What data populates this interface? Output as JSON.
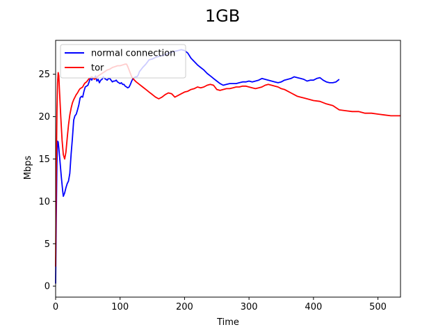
{
  "chart_data": {
    "type": "line",
    "title": "1GB",
    "xlabel": "Time",
    "ylabel": "Mbps",
    "xlim": [
      0,
      535
    ],
    "ylim": [
      -1.3,
      29
    ],
    "x_ticks": [
      0,
      100,
      200,
      300,
      400,
      500
    ],
    "y_ticks": [
      0,
      5,
      10,
      15,
      20,
      25
    ],
    "grid": false,
    "legend_position": "upper-left",
    "series": [
      {
        "name": "normal connection",
        "color": "#0000ff",
        "x": [
          0,
          1,
          2,
          3,
          4,
          5,
          7,
          9,
          11,
          12,
          14,
          16,
          18,
          20,
          22,
          24,
          26,
          28,
          30,
          32,
          34,
          36,
          38,
          40,
          42,
          44,
          46,
          48,
          50,
          52,
          54,
          56,
          58,
          60,
          62,
          64,
          66,
          68,
          70,
          72,
          74,
          76,
          78,
          80,
          82,
          84,
          86,
          88,
          90,
          92,
          94,
          96,
          98,
          100,
          102,
          104,
          106,
          108,
          110,
          112,
          114,
          116,
          118,
          120,
          122,
          124,
          126,
          128,
          130,
          135,
          140,
          145,
          150,
          155,
          160,
          165,
          170,
          175,
          180,
          185,
          190,
          195,
          200,
          205,
          210,
          215,
          220,
          225,
          230,
          235,
          240,
          245,
          250,
          255,
          260,
          265,
          270,
          275,
          280,
          285,
          290,
          295,
          300,
          305,
          310,
          315,
          320,
          325,
          330,
          335,
          340,
          345,
          350,
          355,
          360,
          365,
          370,
          375,
          380,
          385,
          390,
          395,
          400,
          405,
          410,
          415,
          420,
          425,
          430,
          435,
          440
        ],
        "values": [
          0.3,
          8,
          14.5,
          17.1,
          17.0,
          16.3,
          14.5,
          12.8,
          11.2,
          10.6,
          11.0,
          11.6,
          12.1,
          12.4,
          13.3,
          15.6,
          17.4,
          19.6,
          20.1,
          20.3,
          20.8,
          21.4,
          22.2,
          22.4,
          22.3,
          23.0,
          23.5,
          23.6,
          23.7,
          24.1,
          24.6,
          24.3,
          24.6,
          24.5,
          24.8,
          24.2,
          24.4,
          24.0,
          24.3,
          24.4,
          24.7,
          24.5,
          24.4,
          24.3,
          24.5,
          24.5,
          24.3,
          24.1,
          24.2,
          24.2,
          24.3,
          24.1,
          24.0,
          23.9,
          24.0,
          23.8,
          23.8,
          23.6,
          23.5,
          23.4,
          23.5,
          23.8,
          24.2,
          24.5,
          24.6,
          24.7,
          24.7,
          24.9,
          25.3,
          25.8,
          26.2,
          26.7,
          26.8,
          27.0,
          27.1,
          27.2,
          27.3,
          27.5,
          27.6,
          27.7,
          27.8,
          27.9,
          27.8,
          27.5,
          26.9,
          26.5,
          26.1,
          25.8,
          25.5,
          25.1,
          24.8,
          24.5,
          24.2,
          23.9,
          23.7,
          23.8,
          23.9,
          23.9,
          23.9,
          24.0,
          24.1,
          24.1,
          24.2,
          24.1,
          24.2,
          24.3,
          24.5,
          24.4,
          24.3,
          24.2,
          24.1,
          24.0,
          24.1,
          24.3,
          24.4,
          24.5,
          24.7,
          24.6,
          24.5,
          24.4,
          24.2,
          24.3,
          24.3,
          24.5,
          24.6,
          24.3,
          24.1,
          24.0,
          24.0,
          24.1,
          24.4
        ]
      },
      {
        "name": "tor",
        "color": "#ff0000",
        "x": [
          0,
          1,
          2,
          3,
          4,
          5,
          6,
          8,
          10,
          12,
          14,
          16,
          18,
          20,
          22,
          24,
          26,
          28,
          30,
          32,
          34,
          36,
          38,
          40,
          42,
          44,
          46,
          48,
          50,
          52,
          54,
          56,
          58,
          60,
          62,
          64,
          66,
          68,
          70,
          72,
          74,
          76,
          78,
          80,
          84,
          88,
          92,
          96,
          100,
          104,
          108,
          110,
          112,
          115,
          118,
          121,
          125,
          130,
          135,
          140,
          145,
          150,
          155,
          160,
          165,
          170,
          175,
          180,
          185,
          190,
          195,
          200,
          205,
          210,
          215,
          220,
          225,
          230,
          235,
          240,
          245,
          250,
          255,
          260,
          265,
          270,
          275,
          280,
          285,
          290,
          295,
          300,
          305,
          310,
          315,
          320,
          325,
          330,
          335,
          340,
          345,
          350,
          355,
          360,
          365,
          370,
          375,
          380,
          385,
          390,
          395,
          400,
          410,
          420,
          430,
          440,
          450,
          460,
          470,
          480,
          490,
          500,
          510,
          520,
          535
        ],
        "values": [
          2.3,
          13.5,
          20.5,
          24.0,
          25.2,
          24.8,
          23.0,
          20.0,
          17.2,
          15.5,
          15.0,
          15.8,
          17.5,
          19.0,
          20.2,
          21.0,
          21.6,
          22.0,
          22.3,
          22.6,
          22.8,
          23.1,
          23.3,
          23.4,
          23.5,
          23.8,
          24.0,
          24.1,
          24.3,
          24.5,
          24.6,
          24.7,
          24.6,
          24.4,
          24.5,
          24.6,
          24.8,
          24.9,
          25.0,
          25.1,
          25.2,
          25.3,
          25.4,
          25.5,
          25.6,
          25.8,
          25.9,
          26.0,
          26.0,
          26.1,
          26.2,
          26.2,
          25.9,
          25.3,
          24.7,
          24.4,
          24.1,
          23.8,
          23.5,
          23.2,
          22.9,
          22.6,
          22.3,
          22.1,
          22.3,
          22.6,
          22.8,
          22.7,
          22.3,
          22.5,
          22.7,
          22.9,
          23.0,
          23.2,
          23.3,
          23.5,
          23.4,
          23.5,
          23.7,
          23.8,
          23.7,
          23.2,
          23.1,
          23.2,
          23.3,
          23.3,
          23.4,
          23.5,
          23.5,
          23.6,
          23.6,
          23.5,
          23.4,
          23.3,
          23.4,
          23.5,
          23.7,
          23.8,
          23.7,
          23.6,
          23.5,
          23.3,
          23.2,
          23.0,
          22.8,
          22.6,
          22.4,
          22.3,
          22.2,
          22.1,
          22.0,
          21.9,
          21.8,
          21.5,
          21.3,
          20.8,
          20.7,
          20.6,
          20.6,
          20.4,
          20.4,
          20.3,
          20.2,
          20.1,
          20.1
        ]
      }
    ]
  }
}
